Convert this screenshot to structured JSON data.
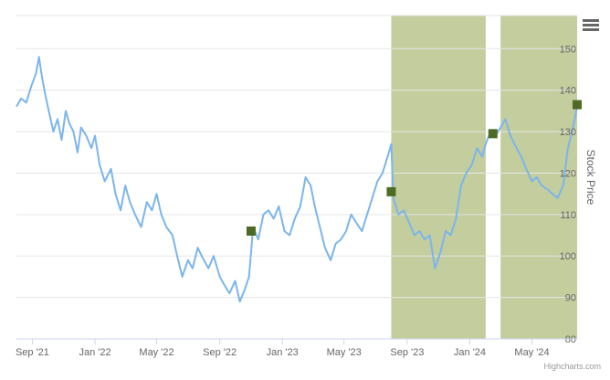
{
  "chart_data": {
    "type": "line",
    "title": "",
    "ylabel": "Stock Price",
    "ylim": [
      80,
      158
    ],
    "yticks": [
      80,
      90,
      100,
      110,
      120,
      130,
      140,
      150
    ],
    "xlim": [
      "2021-08-01",
      "2024-07-28"
    ],
    "xticks": [
      {
        "date": "2021-09-01",
        "label": "Sep '21"
      },
      {
        "date": "2022-01-01",
        "label": "Jan '22"
      },
      {
        "date": "2022-05-01",
        "label": "May '22"
      },
      {
        "date": "2022-09-01",
        "label": "Sep '22"
      },
      {
        "date": "2023-01-01",
        "label": "Jan '23"
      },
      {
        "date": "2023-05-01",
        "label": "May '23"
      },
      {
        "date": "2023-09-01",
        "label": "Sep '23"
      },
      {
        "date": "2024-01-01",
        "label": "Jan '24"
      },
      {
        "date": "2024-05-01",
        "label": "May '24"
      }
    ],
    "bands": [
      {
        "from": "2023-08-01",
        "to": "2024-02-01",
        "color": "#c3cd9e"
      },
      {
        "from": "2024-03-01",
        "to": "2024-07-28",
        "color": "#c3cd9e"
      }
    ],
    "series": [
      {
        "color": "#7cb5ec",
        "points": [
          [
            "2021-08-01",
            136
          ],
          [
            "2021-08-10",
            138
          ],
          [
            "2021-08-20",
            137
          ],
          [
            "2021-08-30",
            141
          ],
          [
            "2021-09-08",
            144
          ],
          [
            "2021-09-14",
            148
          ],
          [
            "2021-09-20",
            143
          ],
          [
            "2021-09-26",
            139
          ],
          [
            "2021-10-03",
            135
          ],
          [
            "2021-10-12",
            130
          ],
          [
            "2021-10-20",
            133
          ],
          [
            "2021-10-28",
            128
          ],
          [
            "2021-11-05",
            135
          ],
          [
            "2021-11-12",
            132
          ],
          [
            "2021-11-20",
            130
          ],
          [
            "2021-11-28",
            125
          ],
          [
            "2021-12-05",
            131
          ],
          [
            "2021-12-15",
            129
          ],
          [
            "2021-12-25",
            126
          ],
          [
            "2022-01-01",
            129
          ],
          [
            "2022-01-10",
            122
          ],
          [
            "2022-01-20",
            118
          ],
          [
            "2022-02-01",
            121
          ],
          [
            "2022-02-10",
            115
          ],
          [
            "2022-02-20",
            111
          ],
          [
            "2022-03-01",
            117
          ],
          [
            "2022-03-10",
            113
          ],
          [
            "2022-03-20",
            110
          ],
          [
            "2022-04-01",
            107
          ],
          [
            "2022-04-12",
            113
          ],
          [
            "2022-04-22",
            111
          ],
          [
            "2022-05-01",
            115
          ],
          [
            "2022-05-10",
            110
          ],
          [
            "2022-05-20",
            107
          ],
          [
            "2022-06-01",
            105
          ],
          [
            "2022-06-10",
            100
          ],
          [
            "2022-06-20",
            95
          ],
          [
            "2022-07-01",
            99
          ],
          [
            "2022-07-10",
            97
          ],
          [
            "2022-07-20",
            102
          ],
          [
            "2022-08-01",
            99
          ],
          [
            "2022-08-10",
            97
          ],
          [
            "2022-08-20",
            100
          ],
          [
            "2022-09-01",
            95
          ],
          [
            "2022-09-10",
            93
          ],
          [
            "2022-09-20",
            91
          ],
          [
            "2022-10-01",
            94
          ],
          [
            "2022-10-10",
            89
          ],
          [
            "2022-10-20",
            92
          ],
          [
            "2022-10-28",
            95
          ],
          [
            "2022-11-05",
            107
          ],
          [
            "2022-11-15",
            104
          ],
          [
            "2022-11-25",
            110
          ],
          [
            "2022-12-05",
            111
          ],
          [
            "2022-12-15",
            109
          ],
          [
            "2022-12-25",
            112
          ],
          [
            "2023-01-05",
            106
          ],
          [
            "2023-01-15",
            105
          ],
          [
            "2023-01-25",
            109
          ],
          [
            "2023-02-05",
            112
          ],
          [
            "2023-02-15",
            119
          ],
          [
            "2023-02-25",
            117
          ],
          [
            "2023-03-05",
            112
          ],
          [
            "2023-03-15",
            107
          ],
          [
            "2023-03-25",
            102
          ],
          [
            "2023-04-05",
            99
          ],
          [
            "2023-04-15",
            103
          ],
          [
            "2023-04-25",
            104
          ],
          [
            "2023-05-05",
            106
          ],
          [
            "2023-05-15",
            110
          ],
          [
            "2023-05-25",
            108
          ],
          [
            "2023-06-05",
            106
          ],
          [
            "2023-06-15",
            110
          ],
          [
            "2023-06-25",
            114
          ],
          [
            "2023-07-05",
            118
          ],
          [
            "2023-07-15",
            120
          ],
          [
            "2023-07-25",
            124
          ],
          [
            "2023-08-01",
            127
          ],
          [
            "2023-08-05",
            114
          ],
          [
            "2023-08-15",
            110
          ],
          [
            "2023-08-25",
            111
          ],
          [
            "2023-09-05",
            108
          ],
          [
            "2023-09-15",
            105
          ],
          [
            "2023-09-25",
            106
          ],
          [
            "2023-10-05",
            104
          ],
          [
            "2023-10-15",
            105
          ],
          [
            "2023-10-25",
            97
          ],
          [
            "2023-11-05",
            101
          ],
          [
            "2023-11-15",
            106
          ],
          [
            "2023-11-25",
            105
          ],
          [
            "2023-12-05",
            109
          ],
          [
            "2023-12-15",
            117
          ],
          [
            "2023-12-25",
            120
          ],
          [
            "2024-01-05",
            122
          ],
          [
            "2024-01-15",
            126
          ],
          [
            "2024-01-25",
            124
          ],
          [
            "2024-02-01",
            127
          ],
          [
            "2024-02-10",
            130
          ],
          [
            "2024-02-20",
            129
          ],
          [
            "2024-03-01",
            131
          ],
          [
            "2024-03-10",
            133
          ],
          [
            "2024-03-20",
            129
          ],
          [
            "2024-04-01",
            126
          ],
          [
            "2024-04-10",
            124
          ],
          [
            "2024-04-20",
            121
          ],
          [
            "2024-05-01",
            118
          ],
          [
            "2024-05-10",
            119
          ],
          [
            "2024-05-20",
            117
          ],
          [
            "2024-06-01",
            116
          ],
          [
            "2024-06-10",
            115
          ],
          [
            "2024-06-20",
            114
          ],
          [
            "2024-07-01",
            117
          ],
          [
            "2024-07-10",
            126
          ],
          [
            "2024-07-20",
            131
          ],
          [
            "2024-07-28",
            136
          ]
        ]
      }
    ],
    "markers": [
      {
        "date": "2022-11-01",
        "value": 106,
        "color": "#4d6b24"
      },
      {
        "date": "2023-08-01",
        "value": 115.5,
        "color": "#4d6b24"
      },
      {
        "date": "2024-02-15",
        "value": 129.5,
        "color": "#4d6b24"
      },
      {
        "date": "2024-07-28",
        "value": 136.5,
        "color": "#4d6b24"
      }
    ],
    "credits": "Highcharts.com",
    "grid": true
  }
}
